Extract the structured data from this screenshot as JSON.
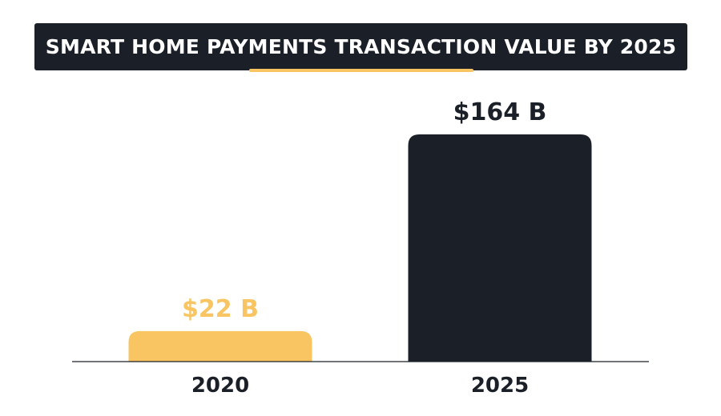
{
  "title": "SMART HOME PAYMENTS TRANSACTION VALUE BY 2025",
  "colors": {
    "title_background": "#1b2028",
    "accent": "#f9c462",
    "dark": "#1b2028"
  },
  "chart_data": {
    "type": "bar",
    "title": "SMART HOME PAYMENTS TRANSACTION VALUE BY 2025",
    "categories": [
      "2020",
      "2025"
    ],
    "values": [
      22,
      164
    ],
    "value_labels": [
      "$22 B",
      "$164 B"
    ],
    "bar_colors": [
      "#f9c462",
      "#1b2028"
    ],
    "xlabel": "",
    "ylabel": "",
    "ylim": [
      0,
      164
    ],
    "grid": false,
    "legend": "none"
  }
}
